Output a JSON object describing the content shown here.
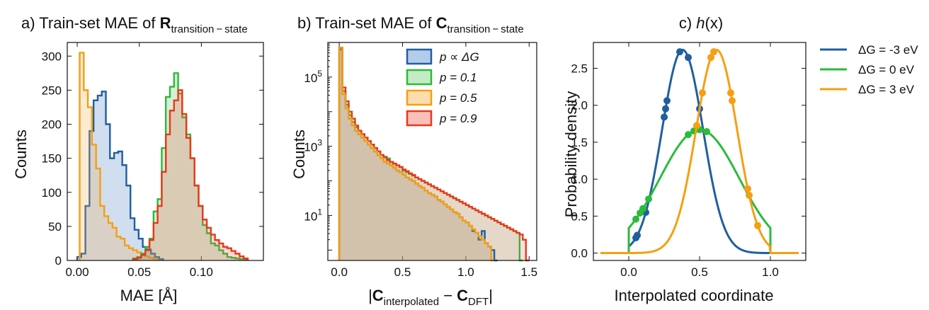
{
  "chart_data": [
    {
      "panel": "a",
      "type": "histogram",
      "title_prefix": "a) Train-set MAE of ",
      "title_symbol": "R",
      "title_subscript": "transition − state",
      "xlabel": "MAE [Å]",
      "ylabel": "Counts",
      "xlim": [
        -0.008,
        0.15
      ],
      "ylim": [
        0,
        320
      ],
      "xticks": [
        "0.00",
        "0.05",
        "0.10"
      ],
      "yticks": [
        "0",
        "50",
        "100",
        "150",
        "200",
        "250",
        "300"
      ],
      "bin_width": 0.0033,
      "series": [
        {
          "color": "#1f5fa0",
          "fill": "rgba(120,160,210,0.35)",
          "start": 0.0,
          "values": [
            5,
            10,
            80,
            190,
            235,
            242,
            248,
            200,
            150,
            158,
            160,
            140,
            110,
            62,
            45,
            32,
            20,
            16,
            10,
            5,
            2
          ]
        },
        {
          "color": "#f59f12",
          "fill": "rgba(245,170,80,0.25)",
          "start": 0.002,
          "values": [
            305,
            250,
            225,
            170,
            135,
            80,
            65,
            55,
            48,
            35,
            32,
            22,
            18,
            15,
            12,
            10,
            6,
            4,
            2
          ]
        },
        {
          "color": "#2bbb3b",
          "fill": "rgba(120,200,120,0.3)",
          "start": 0.045,
          "values": [
            3,
            5,
            10,
            20,
            32,
            72,
            90,
            165,
            240,
            255,
            275,
            245,
            210,
            185,
            150,
            110,
            80,
            52,
            40,
            25,
            22,
            15,
            10,
            5,
            4,
            3,
            2,
            1
          ]
        },
        {
          "color": "#e8391a",
          "fill": "rgba(232,100,80,0.25)",
          "start": 0.045,
          "values": [
            2,
            4,
            8,
            15,
            30,
            55,
            80,
            130,
            185,
            220,
            235,
            250,
            215,
            180,
            150,
            110,
            80,
            60,
            48,
            38,
            30,
            25,
            20,
            18,
            14,
            10,
            6,
            3
          ]
        }
      ]
    },
    {
      "panel": "b",
      "type": "histogram",
      "yscale": "log",
      "title_prefix": "b) Train-set MAE of ",
      "title_symbol": "C",
      "title_subscript": "transition − state",
      "xlabel_parts": [
        "|",
        "C",
        "interpolated",
        " − ",
        "C",
        "DFT",
        "|"
      ],
      "ylabel": "Counts",
      "xlim": [
        -0.09,
        1.56
      ],
      "ylog_range": [
        -0.3,
        6.0
      ],
      "xticks": [
        "0.0",
        "0.5",
        "1.0",
        "1.5"
      ],
      "yticks": [
        {
          "base": "10",
          "exp": "1"
        },
        {
          "base": "10",
          "exp": "3"
        },
        {
          "base": "10",
          "exp": "5"
        }
      ],
      "bin_width": 0.025,
      "legend": [
        {
          "label": "p ∝ ΔG",
          "color": "#1f5fa0",
          "fill": "rgba(130,170,220,0.6)"
        },
        {
          "label": "p = 0.1",
          "color": "#2bbb3b",
          "fill": "rgba(160,220,160,0.6)"
        },
        {
          "label": "p = 0.5",
          "color": "#f59f12",
          "fill": "rgba(250,200,120,0.6)"
        },
        {
          "label": "p = 0.9",
          "color": "#e8391a",
          "fill": "rgba(245,150,140,0.6)"
        }
      ],
      "series": [
        {
          "color": "#2bbb3b",
          "fill": "rgba(120,200,120,0.2)",
          "decay_log": [
            5.85,
            4.6,
            4.2,
            3.9,
            3.7,
            3.55,
            3.45,
            3.35,
            3.25,
            3.15,
            3.05,
            2.95,
            2.85,
            2.75,
            2.7,
            2.65,
            2.55,
            2.5,
            2.45,
            2.4,
            2.3,
            2.25,
            2.2,
            2.15,
            2.1,
            2.05,
            2.0,
            1.95,
            1.9,
            1.85,
            1.8,
            1.75,
            1.7,
            1.65,
            1.6,
            1.55,
            1.5,
            1.45,
            1.4,
            1.35,
            1.3,
            1.25,
            1.2,
            1.15,
            1.1,
            1.05,
            1.0,
            0.95,
            0.9,
            0.85,
            0.8,
            0.75,
            0.7,
            0.65,
            0.6,
            0.55,
            0.5,
            -0.3
          ]
        },
        {
          "color": "#e8391a",
          "fill": "rgba(232,90,70,0.18)",
          "decay_log": [
            5.85,
            4.7,
            4.3,
            4.0,
            3.8,
            3.6,
            3.45,
            3.35,
            3.25,
            3.15,
            3.05,
            2.95,
            2.85,
            2.75,
            2.68,
            2.6,
            2.55,
            2.5,
            2.45,
            2.4,
            2.33,
            2.28,
            2.22,
            2.17,
            2.1,
            2.05,
            2.0,
            1.95,
            1.9,
            1.85,
            1.8,
            1.75,
            1.7,
            1.65,
            1.6,
            1.55,
            1.5,
            1.45,
            1.4,
            1.35,
            1.3,
            1.25,
            1.2,
            1.15,
            1.1,
            1.05,
            1.0,
            0.95,
            0.9,
            0.85,
            0.8,
            0.75,
            0.7,
            0.65,
            0.6,
            0.55,
            0.5,
            0.45,
            0.3,
            -0.3
          ]
        },
        {
          "color": "#1f5fa0",
          "fill": "rgba(100,150,210,0.22)",
          "decay_log": [
            5.8,
            4.5,
            4.1,
            3.8,
            3.6,
            3.45,
            3.35,
            3.25,
            3.15,
            3.05,
            2.95,
            2.85,
            2.75,
            2.65,
            2.55,
            2.5,
            2.45,
            2.38,
            2.3,
            2.25,
            2.18,
            2.1,
            2.05,
            2.0,
            1.92,
            1.85,
            1.8,
            1.72,
            1.65,
            1.6,
            1.55,
            1.45,
            1.4,
            1.32,
            1.25,
            1.18,
            1.1,
            1.05,
            0.95,
            0.85,
            0.8,
            0.7,
            0.55,
            0.5,
            0.3,
            0.55,
            0.2,
            0.1,
            0.0,
            -0.3
          ]
        },
        {
          "color": "#f59f12",
          "fill": "rgba(245,170,70,0.22)",
          "decay_log": [
            5.85,
            4.5,
            4.1,
            3.8,
            3.6,
            3.45,
            3.35,
            3.25,
            3.15,
            3.05,
            2.95,
            2.85,
            2.75,
            2.65,
            2.55,
            2.5,
            2.45,
            2.38,
            2.3,
            2.25,
            2.18,
            2.1,
            2.05,
            2.0,
            1.92,
            1.85,
            1.8,
            1.72,
            1.65,
            1.6,
            1.55,
            1.45,
            1.4,
            1.32,
            1.25,
            1.18,
            1.1,
            1.05,
            0.95,
            0.85,
            0.8,
            0.7,
            0.6,
            0.5,
            0.4,
            0.3,
            0.2,
            0.1,
            -0.3
          ]
        }
      ]
    },
    {
      "panel": "c",
      "type": "line",
      "title_prefix": "c) ",
      "title_func": "h",
      "title_arg": "(x)",
      "xlabel": "Interpolated coordinate",
      "ylabel": "Probability density",
      "xlim": [
        -0.25,
        1.25
      ],
      "ylim": [
        -0.1,
        2.85
      ],
      "xticks": [
        "0.0",
        "0.5",
        "1.0"
      ],
      "yticks": [
        "0.0",
        "0.5",
        "1.0",
        "1.5",
        "2.0",
        "2.5"
      ],
      "legend": [
        {
          "label": "ΔG = -3 eV",
          "color": "#1f5fa0"
        },
        {
          "label": "ΔG = 0 eV",
          "color": "#2bbb3b"
        },
        {
          "label": "ΔG = 3 eV",
          "color": "#f59f12"
        }
      ],
      "series": [
        {
          "color": "#1f5fa0",
          "center": 0.38,
          "width": 0.145,
          "peak": 2.75,
          "range": [
            0.0,
            1.0
          ],
          "points": [
            0.05,
            0.06,
            0.12,
            0.25,
            0.26,
            0.27,
            0.36,
            0.42,
            0.5
          ]
        },
        {
          "color": "#2bbb3b",
          "center": 0.5,
          "width": 0.28,
          "peak": 1.67,
          "range": [
            0.0,
            1.0
          ],
          "points": [
            0.05,
            0.08,
            0.1,
            0.14,
            0.42,
            0.46,
            0.5,
            0.55
          ]
        },
        {
          "color": "#f59f12",
          "center": 0.62,
          "width": 0.145,
          "peak": 2.75,
          "range": [
            -0.2,
            1.2
          ],
          "points": [
            0.48,
            0.52,
            0.58,
            0.6,
            0.72,
            0.73,
            0.84,
            0.85,
            0.91
          ]
        }
      ]
    }
  ]
}
